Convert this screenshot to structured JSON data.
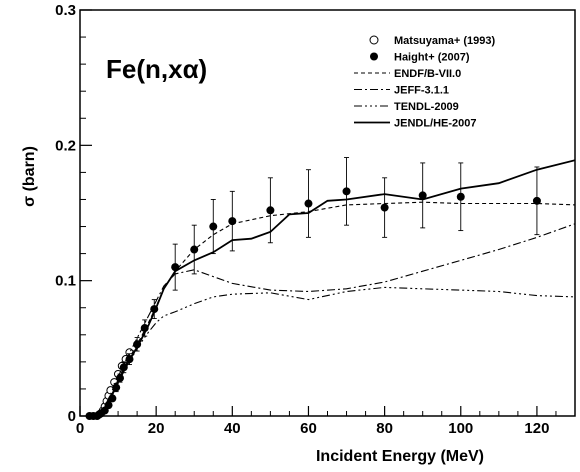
{
  "chart_data": {
    "type": "line",
    "title": "",
    "annotation": "Fe(n,xα)",
    "xlabel": "Incident Energy (MeV)",
    "ylabel": "σ (barn)",
    "xlim": [
      0,
      130
    ],
    "ylim": [
      0,
      0.3
    ],
    "x_ticks": [
      0,
      20,
      40,
      60,
      80,
      100,
      120
    ],
    "x_tick_labels": [
      "0",
      "20",
      "40",
      "60",
      "80",
      "100",
      "120"
    ],
    "y_ticks": [
      0,
      0.1,
      0.2,
      0.3
    ],
    "y_tick_labels": [
      "0",
      "0.1",
      "0.2",
      "0.3"
    ],
    "grid": false,
    "legend_position": "top-right",
    "series": [
      {
        "name": "Matsuyama+ (1993)",
        "kind": "points-open",
        "points": [
          [
            5.0,
            0.001
          ],
          [
            5.5,
            0.002
          ],
          [
            6.0,
            0.004
          ],
          [
            6.5,
            0.007
          ],
          [
            7.0,
            0.011
          ],
          [
            7.5,
            0.015
          ],
          [
            8.0,
            0.019
          ],
          [
            9.0,
            0.025
          ],
          [
            10.0,
            0.031
          ],
          [
            11.0,
            0.037
          ],
          [
            12.0,
            0.042
          ],
          [
            13.0,
            0.047
          ]
        ]
      },
      {
        "name": "Haight+ (2007)",
        "kind": "points-filled",
        "points": [
          {
            "x": 2.5,
            "y": 0.0,
            "err": 0.0
          },
          {
            "x": 3.5,
            "y": 0.0,
            "err": 0.0
          },
          {
            "x": 4.5,
            "y": 0.0,
            "err": 0.0
          },
          {
            "x": 5.5,
            "y": 0.002,
            "err": 0.0
          },
          {
            "x": 6.5,
            "y": 0.004,
            "err": 0.0
          },
          {
            "x": 7.5,
            "y": 0.008,
            "err": 0.002
          },
          {
            "x": 8.5,
            "y": 0.013,
            "err": 0.002
          },
          {
            "x": 9.5,
            "y": 0.021,
            "err": 0.003
          },
          {
            "x": 10.5,
            "y": 0.028,
            "err": 0.003
          },
          {
            "x": 11.5,
            "y": 0.036,
            "err": 0.004
          },
          {
            "x": 13.0,
            "y": 0.042,
            "err": 0.004
          },
          {
            "x": 15.0,
            "y": 0.053,
            "err": 0.005
          },
          {
            "x": 17.0,
            "y": 0.065,
            "err": 0.006
          },
          {
            "x": 19.5,
            "y": 0.079,
            "err": 0.007
          },
          {
            "x": 25.0,
            "y": 0.11,
            "err": 0.017
          },
          {
            "x": 30.0,
            "y": 0.123,
            "err": 0.018
          },
          {
            "x": 35.0,
            "y": 0.14,
            "err": 0.02
          },
          {
            "x": 40.0,
            "y": 0.144,
            "err": 0.022
          },
          {
            "x": 50.0,
            "y": 0.152,
            "err": 0.024
          },
          {
            "x": 60.0,
            "y": 0.157,
            "err": 0.025
          },
          {
            "x": 70.0,
            "y": 0.166,
            "err": 0.025
          },
          {
            "x": 80.0,
            "y": 0.154,
            "err": 0.022
          },
          {
            "x": 90.0,
            "y": 0.163,
            "err": 0.024
          },
          {
            "x": 100.0,
            "y": 0.162,
            "err": 0.025
          },
          {
            "x": 120.0,
            "y": 0.159,
            "err": 0.025
          }
        ]
      },
      {
        "name": "ENDF/B-VII.0",
        "kind": "line",
        "dash": "4,3",
        "points": [
          [
            3,
            0.0
          ],
          [
            5,
            0.001
          ],
          [
            6,
            0.004
          ],
          [
            8,
            0.014
          ],
          [
            10,
            0.027
          ],
          [
            12,
            0.038
          ],
          [
            14,
            0.048
          ],
          [
            16,
            0.058
          ],
          [
            18,
            0.069
          ],
          [
            20,
            0.081
          ],
          [
            22,
            0.094
          ],
          [
            25,
            0.107
          ],
          [
            30,
            0.123
          ],
          [
            35,
            0.134
          ],
          [
            40,
            0.142
          ],
          [
            50,
            0.148
          ],
          [
            60,
            0.151
          ],
          [
            70,
            0.156
          ],
          [
            80,
            0.157
          ],
          [
            90,
            0.158
          ],
          [
            100,
            0.157
          ],
          [
            120,
            0.157
          ],
          [
            130,
            0.156
          ]
        ]
      },
      {
        "name": "JEFF-3.1.1",
        "kind": "line",
        "dash": "8,3,2,3",
        "points": [
          [
            4,
            0.0
          ],
          [
            6,
            0.004
          ],
          [
            8,
            0.016
          ],
          [
            10,
            0.029
          ],
          [
            12,
            0.041
          ],
          [
            14,
            0.052
          ],
          [
            16,
            0.063
          ],
          [
            18,
            0.074
          ],
          [
            20,
            0.085
          ],
          [
            22,
            0.096
          ],
          [
            25,
            0.105
          ],
          [
            30,
            0.108
          ],
          [
            35,
            0.103
          ],
          [
            40,
            0.098
          ],
          [
            50,
            0.093
          ],
          [
            60,
            0.092
          ],
          [
            70,
            0.094
          ],
          [
            80,
            0.099
          ],
          [
            90,
            0.107
          ],
          [
            100,
            0.115
          ],
          [
            110,
            0.123
          ],
          [
            120,
            0.132
          ],
          [
            130,
            0.142
          ]
        ]
      },
      {
        "name": "TENDL-2009",
        "kind": "line",
        "dash": "8,3,2,3,2,3,2,3",
        "points": [
          [
            4,
            0.0
          ],
          [
            6,
            0.003
          ],
          [
            8,
            0.014
          ],
          [
            10,
            0.026
          ],
          [
            12,
            0.036
          ],
          [
            14,
            0.045
          ],
          [
            16,
            0.054
          ],
          [
            18,
            0.062
          ],
          [
            20,
            0.069
          ],
          [
            22,
            0.074
          ],
          [
            25,
            0.077
          ],
          [
            30,
            0.083
          ],
          [
            35,
            0.088
          ],
          [
            40,
            0.09
          ],
          [
            50,
            0.091
          ],
          [
            60,
            0.086
          ],
          [
            70,
            0.092
          ],
          [
            80,
            0.095
          ],
          [
            90,
            0.094
          ],
          [
            100,
            0.093
          ],
          [
            110,
            0.092
          ],
          [
            120,
            0.089
          ],
          [
            130,
            0.088
          ]
        ]
      },
      {
        "name": "JENDL/HE-2007",
        "kind": "line",
        "dash": "",
        "points": [
          [
            3,
            0.0
          ],
          [
            5,
            0.001
          ],
          [
            6,
            0.004
          ],
          [
            8,
            0.013
          ],
          [
            10,
            0.025
          ],
          [
            12,
            0.036
          ],
          [
            14,
            0.046
          ],
          [
            16,
            0.056
          ],
          [
            18,
            0.067
          ],
          [
            20,
            0.08
          ],
          [
            22,
            0.094
          ],
          [
            25,
            0.107
          ],
          [
            30,
            0.115
          ],
          [
            35,
            0.121
          ],
          [
            40,
            0.13
          ],
          [
            45,
            0.131
          ],
          [
            50,
            0.136
          ],
          [
            55,
            0.149
          ],
          [
            60,
            0.15
          ],
          [
            65,
            0.159
          ],
          [
            70,
            0.16
          ],
          [
            80,
            0.164
          ],
          [
            90,
            0.16
          ],
          [
            100,
            0.168
          ],
          [
            110,
            0.172
          ],
          [
            120,
            0.182
          ],
          [
            130,
            0.189
          ]
        ]
      }
    ]
  }
}
